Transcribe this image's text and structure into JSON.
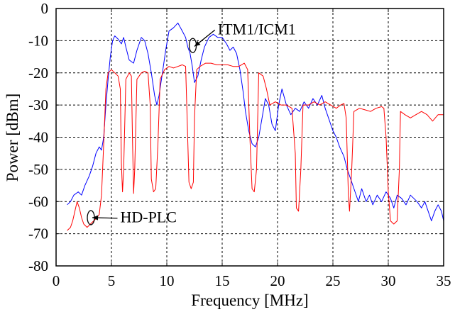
{
  "chart_data": {
    "type": "line",
    "title": "",
    "xlabel": "Frequency [MHz]",
    "ylabel": "Power [dBm]",
    "xlim": [
      0,
      35
    ],
    "ylim": [
      -80,
      0
    ],
    "xticks": [
      0,
      5,
      10,
      15,
      20,
      25,
      30,
      35
    ],
    "yticks": [
      0,
      -10,
      -20,
      -30,
      -40,
      -50,
      -60,
      -70,
      -80
    ],
    "grid": true,
    "legend": "none (inline annotations)",
    "annotations": [
      {
        "text": "ITM1/ICM1",
        "target_series": "ITM1/ICM1",
        "text_at": [
          14.6,
          -8
        ],
        "points_to": [
          12.6,
          -11.5
        ]
      },
      {
        "text": "HD-PLC",
        "target_series": "HD-PLC",
        "text_at": [
          5.8,
          -66.5
        ],
        "points_to": [
          3.4,
          -65
        ]
      }
    ],
    "series": [
      {
        "name": "ITM1/ICM1",
        "color": "#0000ff",
        "points": [
          [
            1.0,
            -61
          ],
          [
            1.3,
            -60
          ],
          [
            1.6,
            -58
          ],
          [
            2.0,
            -57
          ],
          [
            2.3,
            -58
          ],
          [
            2.6,
            -55
          ],
          [
            3.0,
            -52
          ],
          [
            3.3,
            -49
          ],
          [
            3.6,
            -45
          ],
          [
            3.9,
            -43
          ],
          [
            4.1,
            -44
          ],
          [
            4.3,
            -40
          ],
          [
            4.5,
            -30
          ],
          [
            4.7,
            -22
          ],
          [
            4.9,
            -15
          ],
          [
            5.1,
            -10
          ],
          [
            5.3,
            -8.5
          ],
          [
            5.6,
            -9.5
          ],
          [
            5.9,
            -11
          ],
          [
            6.1,
            -9
          ],
          [
            6.3,
            -12
          ],
          [
            6.6,
            -16
          ],
          [
            7.0,
            -17
          ],
          [
            7.3,
            -13
          ],
          [
            7.7,
            -9
          ],
          [
            8.0,
            -10
          ],
          [
            8.3,
            -14
          ],
          [
            8.6,
            -20
          ],
          [
            8.9,
            -27
          ],
          [
            9.1,
            -30
          ],
          [
            9.3,
            -27
          ],
          [
            9.6,
            -20
          ],
          [
            9.9,
            -13
          ],
          [
            10.2,
            -7
          ],
          [
            10.6,
            -6
          ],
          [
            11.0,
            -4.5
          ],
          [
            11.4,
            -7
          ],
          [
            11.7,
            -9
          ],
          [
            11.9,
            -12
          ],
          [
            12.1,
            -14
          ],
          [
            12.3,
            -18
          ],
          [
            12.5,
            -23
          ],
          [
            12.8,
            -21
          ],
          [
            13.1,
            -16
          ],
          [
            13.4,
            -12
          ],
          [
            13.8,
            -9
          ],
          [
            14.2,
            -8
          ],
          [
            14.6,
            -9
          ],
          [
            15.0,
            -9
          ],
          [
            15.4,
            -11
          ],
          [
            15.7,
            -13
          ],
          [
            16.0,
            -12
          ],
          [
            16.3,
            -14
          ],
          [
            16.6,
            -19
          ],
          [
            16.9,
            -26
          ],
          [
            17.1,
            -32
          ],
          [
            17.4,
            -38
          ],
          [
            17.7,
            -42
          ],
          [
            18.0,
            -43
          ],
          [
            18.3,
            -40
          ],
          [
            18.6,
            -34
          ],
          [
            18.9,
            -28
          ],
          [
            19.2,
            -30
          ],
          [
            19.5,
            -36
          ],
          [
            19.8,
            -38
          ],
          [
            20.1,
            -30
          ],
          [
            20.4,
            -25
          ],
          [
            20.8,
            -30
          ],
          [
            21.2,
            -33
          ],
          [
            21.6,
            -31
          ],
          [
            22.0,
            -32
          ],
          [
            22.4,
            -29
          ],
          [
            22.8,
            -31
          ],
          [
            23.2,
            -28
          ],
          [
            23.6,
            -30
          ],
          [
            24.0,
            -27
          ],
          [
            24.3,
            -31
          ],
          [
            24.6,
            -34
          ],
          [
            25.0,
            -38
          ],
          [
            25.3,
            -40
          ],
          [
            25.6,
            -43
          ],
          [
            26.0,
            -46
          ],
          [
            26.3,
            -50
          ],
          [
            26.6,
            -53
          ],
          [
            27.0,
            -57
          ],
          [
            27.3,
            -60
          ],
          [
            27.6,
            -56
          ],
          [
            28.0,
            -60
          ],
          [
            28.3,
            -58
          ],
          [
            28.6,
            -61
          ],
          [
            29.0,
            -58
          ],
          [
            29.4,
            -60
          ],
          [
            29.8,
            -57
          ],
          [
            30.2,
            -59
          ],
          [
            30.5,
            -62
          ],
          [
            30.8,
            -58
          ],
          [
            31.2,
            -59
          ],
          [
            31.6,
            -61
          ],
          [
            32.0,
            -58
          ],
          [
            32.3,
            -59
          ],
          [
            32.6,
            -60
          ],
          [
            33.0,
            -62
          ],
          [
            33.3,
            -60
          ],
          [
            33.6,
            -63
          ],
          [
            33.9,
            -66
          ],
          [
            34.2,
            -63
          ],
          [
            34.5,
            -61
          ],
          [
            34.8,
            -63
          ],
          [
            35.0,
            -66
          ]
        ]
      },
      {
        "name": "HD-PLC",
        "color": "#ff0000",
        "points": [
          [
            1.0,
            -69
          ],
          [
            1.3,
            -68
          ],
          [
            1.5,
            -66
          ],
          [
            1.7,
            -63
          ],
          [
            1.9,
            -60
          ],
          [
            2.1,
            -62
          ],
          [
            2.3,
            -65
          ],
          [
            2.5,
            -67
          ],
          [
            2.8,
            -68
          ],
          [
            3.1,
            -67
          ],
          [
            3.4,
            -66
          ],
          [
            3.7,
            -65
          ],
          [
            3.9,
            -64
          ],
          [
            4.1,
            -58
          ],
          [
            4.3,
            -42
          ],
          [
            4.5,
            -25
          ],
          [
            4.7,
            -20
          ],
          [
            5.0,
            -19
          ],
          [
            5.3,
            -20
          ],
          [
            5.6,
            -21
          ],
          [
            5.8,
            -25
          ],
          [
            5.9,
            -48
          ],
          [
            6.0,
            -57
          ],
          [
            6.1,
            -50
          ],
          [
            6.3,
            -22
          ],
          [
            6.6,
            -20
          ],
          [
            6.8,
            -21
          ],
          [
            6.9,
            -40
          ],
          [
            7.0,
            -57.5
          ],
          [
            7.1,
            -50
          ],
          [
            7.3,
            -22
          ],
          [
            7.7,
            -20
          ],
          [
            8.0,
            -19.5
          ],
          [
            8.3,
            -20
          ],
          [
            8.5,
            -30
          ],
          [
            8.6,
            -53
          ],
          [
            8.8,
            -57
          ],
          [
            9.0,
            -56
          ],
          [
            9.2,
            -42
          ],
          [
            9.4,
            -22
          ],
          [
            9.8,
            -19
          ],
          [
            10.2,
            -18
          ],
          [
            10.6,
            -18.5
          ],
          [
            11.0,
            -18
          ],
          [
            11.4,
            -17.5
          ],
          [
            11.7,
            -18
          ],
          [
            11.8,
            -30
          ],
          [
            12.0,
            -54
          ],
          [
            12.2,
            -56
          ],
          [
            12.4,
            -54
          ],
          [
            12.5,
            -34
          ],
          [
            12.7,
            -19
          ],
          [
            13.0,
            -18
          ],
          [
            13.5,
            -17
          ],
          [
            14.0,
            -17
          ],
          [
            14.5,
            -17.5
          ],
          [
            15.0,
            -17.5
          ],
          [
            15.5,
            -17.5
          ],
          [
            16.0,
            -18
          ],
          [
            16.5,
            -18
          ],
          [
            17.0,
            -17
          ],
          [
            17.3,
            -19
          ],
          [
            17.5,
            -40
          ],
          [
            17.7,
            -56
          ],
          [
            17.9,
            -57
          ],
          [
            18.1,
            -50
          ],
          [
            18.3,
            -20
          ],
          [
            18.7,
            -21
          ],
          [
            19.0,
            -25
          ],
          [
            19.3,
            -30
          ],
          [
            19.8,
            -29
          ],
          [
            20.3,
            -30
          ],
          [
            20.8,
            -30
          ],
          [
            21.3,
            -31
          ],
          [
            21.6,
            -45
          ],
          [
            21.7,
            -62
          ],
          [
            21.9,
            -63
          ],
          [
            22.1,
            -50
          ],
          [
            22.3,
            -30
          ],
          [
            22.8,
            -30
          ],
          [
            23.3,
            -29
          ],
          [
            23.8,
            -30
          ],
          [
            24.3,
            -29
          ],
          [
            24.8,
            -30
          ],
          [
            25.3,
            -31
          ],
          [
            25.7,
            -30
          ],
          [
            26.0,
            -29.5
          ],
          [
            26.2,
            -34
          ],
          [
            26.4,
            -58
          ],
          [
            26.5,
            -63
          ],
          [
            26.7,
            -50
          ],
          [
            26.9,
            -32
          ],
          [
            27.4,
            -31
          ],
          [
            27.9,
            -31.5
          ],
          [
            28.4,
            -32
          ],
          [
            28.9,
            -31
          ],
          [
            29.4,
            -30.5
          ],
          [
            29.6,
            -31
          ],
          [
            29.8,
            -40
          ],
          [
            30.0,
            -57
          ],
          [
            30.2,
            -66
          ],
          [
            30.5,
            -67
          ],
          [
            30.8,
            -66
          ],
          [
            31.0,
            -50
          ],
          [
            31.1,
            -32
          ],
          [
            31.5,
            -33
          ],
          [
            32.0,
            -34
          ],
          [
            32.5,
            -33
          ],
          [
            33.0,
            -32
          ],
          [
            33.5,
            -33
          ],
          [
            34.0,
            -35
          ],
          [
            34.5,
            -33
          ],
          [
            35.0,
            -33
          ]
        ]
      }
    ]
  }
}
